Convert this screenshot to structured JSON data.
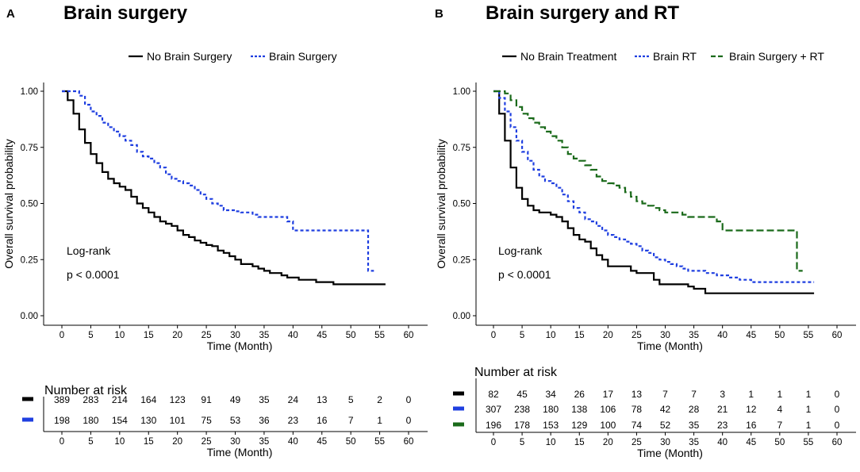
{
  "chart_data": [
    {
      "type": "line",
      "subtype": "kaplan-meier",
      "panel_label": "A",
      "title": "Brain surgery",
      "xlabel": "Time (Month)",
      "ylabel": "Overall survival probability",
      "xlim": [
        0,
        60
      ],
      "ylim": [
        0,
        1
      ],
      "x_ticks": [
        "0",
        "5",
        "10",
        "15",
        "20",
        "25",
        "30",
        "35",
        "40",
        "45",
        "50",
        "55",
        "60"
      ],
      "y_ticks": [
        "0.00",
        "0.25",
        "0.50",
        "0.75",
        "1.00"
      ],
      "legend": "top",
      "annotation": {
        "line1": "Log-rank",
        "line2": "p < 0.0001"
      },
      "series": [
        {
          "name": "No Brain Surgery",
          "color": "#000000",
          "style": "solid",
          "x": [
            0,
            1,
            2,
            3,
            4,
            5,
            6,
            7,
            8,
            9,
            10,
            11,
            12,
            13,
            14,
            15,
            16,
            17,
            18,
            19,
            20,
            21,
            22,
            23,
            24,
            25,
            26,
            27,
            28,
            29,
            30,
            31,
            32,
            33,
            34,
            35,
            36,
            37,
            38,
            39,
            40,
            41,
            42,
            43,
            44,
            45,
            46,
            47,
            48,
            56
          ],
          "y": [
            1.0,
            0.96,
            0.9,
            0.83,
            0.77,
            0.72,
            0.68,
            0.64,
            0.61,
            0.59,
            0.575,
            0.56,
            0.53,
            0.5,
            0.48,
            0.46,
            0.44,
            0.42,
            0.41,
            0.4,
            0.38,
            0.36,
            0.35,
            0.335,
            0.325,
            0.315,
            0.31,
            0.29,
            0.28,
            0.265,
            0.25,
            0.23,
            0.23,
            0.22,
            0.21,
            0.2,
            0.19,
            0.19,
            0.18,
            0.17,
            0.17,
            0.16,
            0.16,
            0.16,
            0.15,
            0.15,
            0.15,
            0.14,
            0.14,
            0.14
          ]
        },
        {
          "name": "Brain Surgery",
          "color": "#1f3fe0",
          "style": "dotted",
          "x": [
            0,
            1,
            2,
            3,
            4,
            5,
            6,
            7,
            8,
            9,
            10,
            11,
            12,
            13,
            14,
            15,
            16,
            17,
            18,
            19,
            20,
            21,
            22,
            23,
            24,
            25,
            26,
            27,
            28,
            29,
            30,
            31,
            32,
            33,
            34,
            35,
            36,
            37,
            38,
            39,
            40,
            41,
            42,
            43,
            44,
            45,
            46,
            47,
            48,
            49,
            50,
            51,
            52,
            53,
            54
          ],
          "y": [
            1.0,
            1.0,
            1.0,
            0.98,
            0.94,
            0.91,
            0.89,
            0.86,
            0.84,
            0.82,
            0.8,
            0.78,
            0.76,
            0.73,
            0.71,
            0.7,
            0.68,
            0.66,
            0.63,
            0.61,
            0.6,
            0.59,
            0.58,
            0.56,
            0.54,
            0.52,
            0.5,
            0.49,
            0.47,
            0.47,
            0.465,
            0.46,
            0.46,
            0.45,
            0.44,
            0.44,
            0.44,
            0.44,
            0.44,
            0.42,
            0.38,
            0.38,
            0.38,
            0.38,
            0.38,
            0.38,
            0.38,
            0.38,
            0.38,
            0.38,
            0.38,
            0.38,
            0.38,
            0.2,
            0.2
          ]
        }
      ],
      "risk_table": {
        "title": "Number at risk",
        "x_ticks": [
          "0",
          "5",
          "10",
          "15",
          "20",
          "25",
          "30",
          "35",
          "40",
          "45",
          "50",
          "55",
          "60"
        ],
        "xlabel": "Time (Month)",
        "rows": [
          {
            "color": "#000000",
            "values": [
              "389",
              "283",
              "214",
              "164",
              "123",
              "91",
              "49",
              "35",
              "24",
              "13",
              "5",
              "2",
              "0"
            ]
          },
          {
            "color": "#1f3fe0",
            "values": [
              "198",
              "180",
              "154",
              "130",
              "101",
              "75",
              "53",
              "36",
              "23",
              "16",
              "7",
              "1",
              "0"
            ]
          }
        ]
      }
    },
    {
      "type": "line",
      "subtype": "kaplan-meier",
      "panel_label": "B",
      "title": "Brain surgery and RT",
      "xlabel": "Time (Month)",
      "ylabel": "Overall survival probability",
      "xlim": [
        0,
        60
      ],
      "ylim": [
        0,
        1
      ],
      "x_ticks": [
        "0",
        "5",
        "10",
        "15",
        "20",
        "25",
        "30",
        "35",
        "40",
        "45",
        "50",
        "55",
        "60"
      ],
      "y_ticks": [
        "0.00",
        "0.25",
        "0.50",
        "0.75",
        "1.00"
      ],
      "legend": "top",
      "annotation": {
        "line1": "Log-rank",
        "line2": "p < 0.0001"
      },
      "series": [
        {
          "name": "No Brain Treatment",
          "color": "#000000",
          "style": "solid",
          "x": [
            0,
            1,
            2,
            3,
            4,
            5,
            6,
            7,
            8,
            9,
            10,
            11,
            12,
            13,
            14,
            15,
            16,
            17,
            18,
            19,
            20,
            21,
            22,
            23,
            24,
            25,
            26,
            27,
            28,
            29,
            30,
            31,
            32,
            33,
            34,
            35,
            36,
            37,
            38,
            39,
            40,
            41,
            42,
            43,
            44,
            45,
            46,
            47,
            48,
            49,
            50,
            51,
            52,
            53,
            54,
            55,
            56
          ],
          "y": [
            1.0,
            0.9,
            0.78,
            0.66,
            0.57,
            0.52,
            0.49,
            0.47,
            0.46,
            0.46,
            0.45,
            0.44,
            0.42,
            0.39,
            0.36,
            0.34,
            0.33,
            0.3,
            0.27,
            0.25,
            0.22,
            0.22,
            0.22,
            0.22,
            0.2,
            0.19,
            0.19,
            0.19,
            0.16,
            0.14,
            0.14,
            0.14,
            0.14,
            0.14,
            0.13,
            0.12,
            0.12,
            0.1,
            0.1,
            0.1,
            0.1,
            0.1,
            0.1,
            0.1,
            0.1,
            0.1,
            0.1,
            0.1,
            0.1,
            0.1,
            0.1,
            0.1,
            0.1,
            0.1,
            0.1,
            0.1,
            0.1
          ]
        },
        {
          "name": "Brain RT",
          "color": "#1f3fe0",
          "style": "dotted",
          "x": [
            0,
            1,
            2,
            3,
            4,
            5,
            6,
            7,
            8,
            9,
            10,
            11,
            12,
            13,
            14,
            15,
            16,
            17,
            18,
            19,
            20,
            21,
            22,
            23,
            24,
            25,
            26,
            27,
            28,
            29,
            30,
            31,
            32,
            33,
            34,
            35,
            36,
            37,
            38,
            39,
            40,
            41,
            42,
            43,
            44,
            45,
            46,
            47,
            48,
            49,
            50,
            51,
            52,
            53,
            54,
            55,
            56
          ],
          "y": [
            1.0,
            0.97,
            0.91,
            0.84,
            0.78,
            0.73,
            0.69,
            0.65,
            0.62,
            0.6,
            0.59,
            0.57,
            0.54,
            0.51,
            0.48,
            0.46,
            0.43,
            0.42,
            0.4,
            0.38,
            0.36,
            0.35,
            0.34,
            0.33,
            0.32,
            0.31,
            0.29,
            0.28,
            0.26,
            0.25,
            0.24,
            0.23,
            0.22,
            0.21,
            0.2,
            0.2,
            0.2,
            0.19,
            0.19,
            0.18,
            0.18,
            0.17,
            0.17,
            0.16,
            0.16,
            0.15,
            0.15,
            0.15,
            0.15,
            0.15,
            0.15,
            0.15,
            0.15,
            0.15,
            0.15,
            0.15,
            0.15
          ]
        },
        {
          "name": "Brain Surgery + RT",
          "color": "#1a6a1a",
          "style": "dashed",
          "x": [
            0,
            1,
            2,
            3,
            4,
            5,
            6,
            7,
            8,
            9,
            10,
            11,
            12,
            13,
            14,
            15,
            16,
            17,
            18,
            19,
            20,
            21,
            22,
            23,
            24,
            25,
            26,
            27,
            28,
            29,
            30,
            31,
            32,
            33,
            34,
            35,
            36,
            37,
            38,
            39,
            40,
            41,
            42,
            43,
            44,
            45,
            46,
            47,
            48,
            49,
            50,
            51,
            52,
            53,
            54
          ],
          "y": [
            1.0,
            1.0,
            0.99,
            0.96,
            0.93,
            0.9,
            0.88,
            0.86,
            0.84,
            0.82,
            0.8,
            0.78,
            0.75,
            0.72,
            0.7,
            0.69,
            0.67,
            0.65,
            0.62,
            0.6,
            0.59,
            0.58,
            0.57,
            0.55,
            0.53,
            0.51,
            0.5,
            0.49,
            0.48,
            0.47,
            0.46,
            0.46,
            0.46,
            0.45,
            0.44,
            0.44,
            0.44,
            0.44,
            0.44,
            0.42,
            0.38,
            0.38,
            0.38,
            0.38,
            0.38,
            0.38,
            0.38,
            0.38,
            0.38,
            0.38,
            0.38,
            0.38,
            0.38,
            0.2,
            0.2
          ]
        }
      ],
      "risk_table": {
        "title": "Number at risk",
        "x_ticks": [
          "0",
          "5",
          "10",
          "15",
          "20",
          "25",
          "30",
          "35",
          "40",
          "45",
          "50",
          "55",
          "60"
        ],
        "xlabel": "Time (Month)",
        "rows": [
          {
            "color": "#000000",
            "values": [
              "82",
              "45",
              "34",
              "26",
              "17",
              "13",
              "7",
              "7",
              "3",
              "1",
              "1",
              "1",
              "0"
            ]
          },
          {
            "color": "#1f3fe0",
            "values": [
              "307",
              "238",
              "180",
              "138",
              "106",
              "78",
              "42",
              "28",
              "21",
              "12",
              "4",
              "1",
              "0"
            ]
          },
          {
            "color": "#1a6a1a",
            "values": [
              "196",
              "178",
              "153",
              "129",
              "100",
              "74",
              "52",
              "35",
              "23",
              "16",
              "7",
              "1",
              "0"
            ]
          }
        ]
      }
    }
  ]
}
